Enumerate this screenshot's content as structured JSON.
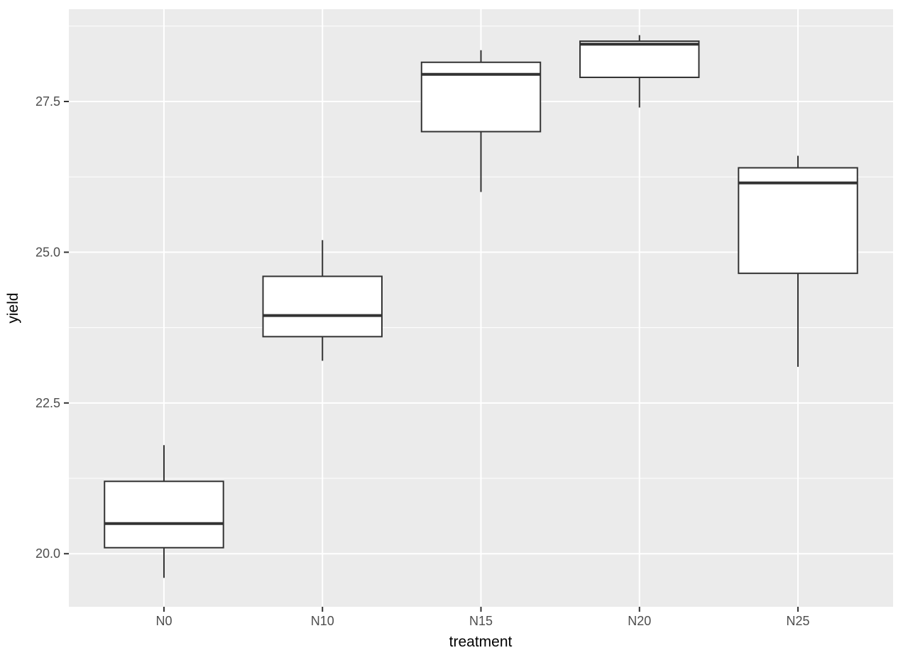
{
  "figure": {
    "kind": "ggplot-boxplot"
  },
  "chart_data": {
    "type": "boxplot",
    "title": "",
    "xlabel": "treatment",
    "ylabel": "yield",
    "categories": [
      "N0",
      "N10",
      "N15",
      "N20",
      "N25"
    ],
    "boxes": [
      {
        "category": "N0",
        "min": 19.6,
        "q1": 20.1,
        "median": 20.5,
        "q3": 21.2,
        "max": 21.8
      },
      {
        "category": "N10",
        "min": 23.2,
        "q1": 23.6,
        "median": 23.95,
        "q3": 24.6,
        "max": 25.2
      },
      {
        "category": "N15",
        "min": 26.0,
        "q1": 27.0,
        "median": 27.95,
        "q3": 28.15,
        "max": 28.35
      },
      {
        "category": "N20",
        "min": 27.4,
        "q1": 27.9,
        "median": 28.45,
        "q3": 28.5,
        "max": 28.6
      },
      {
        "category": "N25",
        "min": 23.1,
        "q1": 24.65,
        "median": 26.15,
        "q3": 26.4,
        "max": 26.6
      }
    ],
    "y_axis": {
      "ticks": [
        20.0,
        22.5,
        25.0,
        27.5
      ],
      "tick_labels": [
        "20.0",
        "22.5",
        "25.0",
        "27.5"
      ],
      "minor_ticks": [
        21.25,
        23.75,
        26.25,
        28.75
      ],
      "range": [
        19.12,
        29.03
      ],
      "grid": true
    },
    "x_axis": {
      "grid": true
    },
    "legend_position": "none",
    "colors": {
      "panel_bg": "#EBEBEB",
      "grid": "#FFFFFF",
      "box_stroke": "#333333",
      "box_fill": "#FFFFFF",
      "axis_text": "#4D4D4D",
      "axis_title": "#000000",
      "tick_mark": "#333333"
    }
  }
}
